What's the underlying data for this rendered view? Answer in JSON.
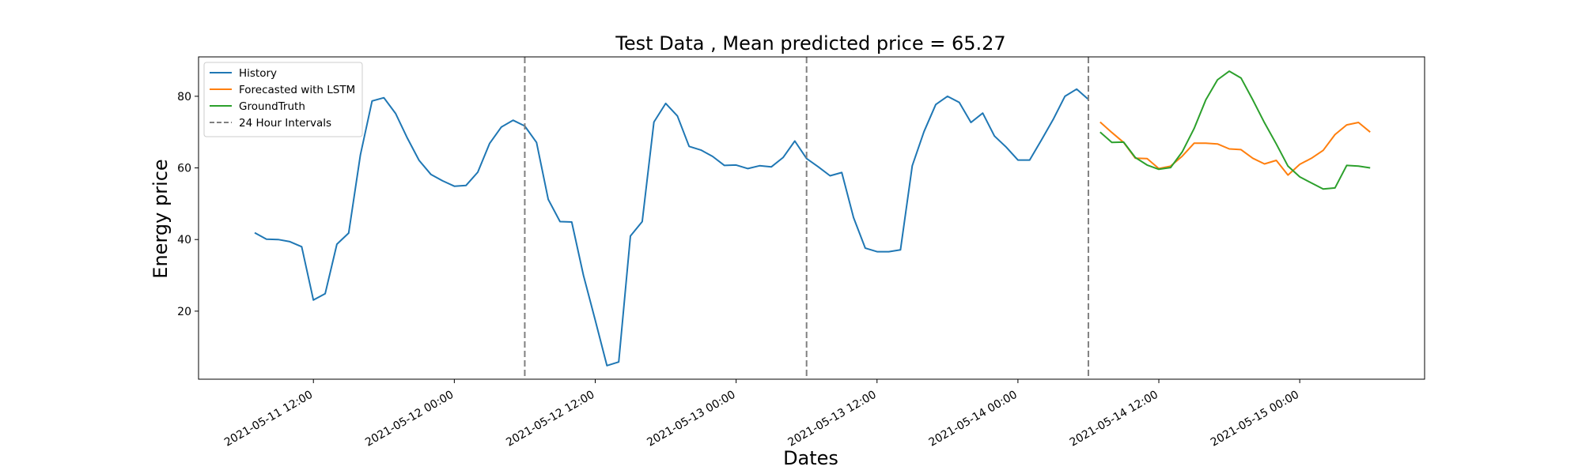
{
  "chart_data": {
    "type": "line",
    "title": "Test Data , Mean predicted price = 65.27",
    "xlabel": "Dates",
    "ylabel": "Energy price",
    "x_ticks": [
      "2021-05-11 12:00",
      "2021-05-12 00:00",
      "2021-05-12 12:00",
      "2021-05-13 00:00",
      "2021-05-13 12:00",
      "2021-05-14 00:00",
      "2021-05-14 12:00",
      "2021-05-15 00:00"
    ],
    "y_ticks": [
      20,
      40,
      60,
      80
    ],
    "ylim": [
      1,
      91
    ],
    "xlim": [
      "2021-05-11 02:13",
      "2021-05-15 10:38"
    ],
    "legend_position": "top-left",
    "grid": false,
    "series": [
      {
        "name": "History",
        "color": "#1f77b4",
        "x": [
          "2021-05-11 07:00",
          "2021-05-11 08:00",
          "2021-05-11 09:00",
          "2021-05-11 10:00",
          "2021-05-11 11:00",
          "2021-05-11 12:00",
          "2021-05-11 13:00",
          "2021-05-11 14:00",
          "2021-05-11 15:00",
          "2021-05-11 16:00",
          "2021-05-11 17:00",
          "2021-05-11 18:00",
          "2021-05-11 19:00",
          "2021-05-11 20:00",
          "2021-05-11 21:00",
          "2021-05-11 22:00",
          "2021-05-11 23:00",
          "2021-05-12 00:00",
          "2021-05-12 01:00",
          "2021-05-12 02:00",
          "2021-05-12 03:00",
          "2021-05-12 04:00",
          "2021-05-12 05:00",
          "2021-05-12 06:00",
          "2021-05-12 07:00",
          "2021-05-12 08:00",
          "2021-05-12 09:00",
          "2021-05-12 10:00",
          "2021-05-12 11:00",
          "2021-05-12 12:00",
          "2021-05-12 13:00",
          "2021-05-12 14:00",
          "2021-05-12 15:00",
          "2021-05-12 16:00",
          "2021-05-12 17:00",
          "2021-05-12 18:00",
          "2021-05-12 19:00",
          "2021-05-12 20:00",
          "2021-05-12 21:00",
          "2021-05-12 22:00",
          "2021-05-12 23:00",
          "2021-05-13 00:00",
          "2021-05-13 01:00",
          "2021-05-13 02:00",
          "2021-05-13 03:00",
          "2021-05-13 04:00",
          "2021-05-13 05:00",
          "2021-05-13 06:00",
          "2021-05-13 07:00",
          "2021-05-13 08:00",
          "2021-05-13 09:00",
          "2021-05-13 10:00",
          "2021-05-13 11:00",
          "2021-05-13 12:00",
          "2021-05-13 13:00",
          "2021-05-13 14:00",
          "2021-05-13 15:00",
          "2021-05-13 16:00",
          "2021-05-13 17:00",
          "2021-05-13 18:00",
          "2021-05-13 19:00",
          "2021-05-13 20:00",
          "2021-05-13 21:00",
          "2021-05-13 22:00",
          "2021-05-13 23:00",
          "2021-05-14 00:00",
          "2021-05-14 01:00",
          "2021-05-14 02:00",
          "2021-05-14 03:00",
          "2021-05-14 04:00",
          "2021-05-14 05:00",
          "2021-05-14 06:00"
        ],
        "y": [
          41.9,
          40.1,
          40.0,
          39.4,
          38.0,
          23.1,
          24.9,
          38.7,
          41.8,
          63.6,
          78.7,
          79.6,
          75.2,
          68.3,
          62.1,
          58.2,
          56.4,
          54.9,
          55.1,
          58.8,
          66.8,
          71.4,
          73.3,
          71.7,
          67.1,
          51.2,
          45.0,
          44.9,
          30.0,
          17.5,
          4.8,
          5.8,
          41.0,
          45.0,
          72.8,
          78.0,
          74.5,
          66.0,
          65.0,
          63.2,
          60.7,
          60.8,
          59.8,
          60.6,
          60.3,
          62.9,
          67.5,
          62.6,
          60.3,
          57.8,
          58.7,
          46.1,
          37.6,
          36.6,
          36.6,
          37.1,
          60.6,
          70.1,
          77.7,
          80.0,
          78.3,
          72.7,
          75.3,
          68.9,
          65.8,
          62.2,
          62.2,
          67.8,
          73.5,
          80.0,
          82.0,
          79.1
        ]
      },
      {
        "name": "Forecasted with LSTM",
        "color": "#ff7f0e",
        "x": [
          "2021-05-14 07:00",
          "2021-05-14 08:00",
          "2021-05-14 09:00",
          "2021-05-14 10:00",
          "2021-05-14 11:00",
          "2021-05-14 12:00",
          "2021-05-14 13:00",
          "2021-05-14 14:00",
          "2021-05-14 15:00",
          "2021-05-14 16:00",
          "2021-05-14 17:00",
          "2021-05-14 18:00",
          "2021-05-14 19:00",
          "2021-05-14 20:00",
          "2021-05-14 21:00",
          "2021-05-14 22:00",
          "2021-05-14 23:00",
          "2021-05-15 00:00",
          "2021-05-15 01:00",
          "2021-05-15 02:00",
          "2021-05-15 03:00",
          "2021-05-15 04:00",
          "2021-05-15 05:00",
          "2021-05-15 06:00"
        ],
        "y": [
          72.8,
          69.9,
          67.1,
          62.7,
          62.6,
          59.8,
          60.5,
          63.3,
          66.9,
          66.9,
          66.7,
          65.3,
          65.1,
          62.7,
          61.1,
          62.1,
          58.0,
          61.0,
          62.7,
          64.9,
          69.3,
          72.0,
          72.7,
          70.0
        ]
      },
      {
        "name": "GroundTruth",
        "color": "#2ca02c",
        "x": [
          "2021-05-14 07:00",
          "2021-05-14 08:00",
          "2021-05-14 09:00",
          "2021-05-14 10:00",
          "2021-05-14 11:00",
          "2021-05-14 12:00",
          "2021-05-14 13:00",
          "2021-05-14 14:00",
          "2021-05-14 15:00",
          "2021-05-14 16:00",
          "2021-05-14 17:00",
          "2021-05-14 18:00",
          "2021-05-14 19:00",
          "2021-05-14 20:00",
          "2021-05-14 21:00",
          "2021-05-14 22:00",
          "2021-05-14 23:00",
          "2021-05-15 00:00",
          "2021-05-15 01:00",
          "2021-05-15 02:00",
          "2021-05-15 03:00",
          "2021-05-15 04:00",
          "2021-05-15 05:00",
          "2021-05-15 06:00"
        ],
        "y": [
          70.0,
          67.1,
          67.2,
          62.9,
          60.8,
          59.6,
          60.1,
          64.5,
          71.0,
          79.0,
          84.6,
          87.0,
          85.1,
          79.0,
          72.6,
          66.7,
          60.5,
          57.5,
          55.8,
          54.1,
          54.4,
          60.7,
          60.5,
          60.0
        ]
      },
      {
        "name": "24 Hour Intervals",
        "color": "#808080",
        "style": "dashed",
        "x_lines": [
          "2021-05-12 06:00",
          "2021-05-13 06:00",
          "2021-05-14 06:00"
        ]
      }
    ]
  }
}
